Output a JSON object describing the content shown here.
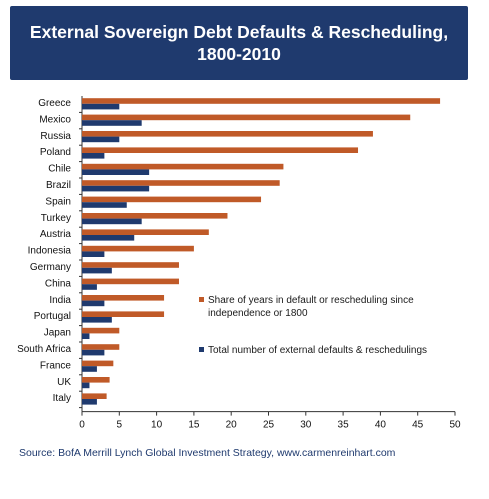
{
  "title_line1": "External Sovereign Debt Defaults & Rescheduling,",
  "title_line2": "1800-2010",
  "source": "Source: BofA Merrill Lynch Global Investment Strategy, www.carmenreinhart.com",
  "colors": {
    "banner": "#1f3a6e",
    "share_series": "#c05a28",
    "count_series": "#1f3a6e"
  },
  "chart_data": {
    "type": "bar",
    "orientation": "horizontal",
    "categories": [
      "Greece",
      "Mexico",
      "Russia",
      "Poland",
      "Chile",
      "Brazil",
      "Spain",
      "Turkey",
      "Austria",
      "Indonesia",
      "Germany",
      "China",
      "India",
      "Portugal",
      "Japan",
      "South Africa",
      "France",
      "UK",
      "Italy"
    ],
    "series": [
      {
        "name": "Share of years in default or rescheduling since independence or 1800",
        "legend_lines": [
          "Share of years in default or rescheduling since",
          "independence or 1800"
        ],
        "values": [
          48,
          44,
          39,
          37,
          27,
          26.5,
          24,
          19.5,
          17,
          15,
          13,
          13,
          11,
          11,
          5,
          5,
          4.2,
          3.7,
          3.3
        ]
      },
      {
        "name": "Total number of external defaults & reschedulings",
        "legend_lines": [
          "Total number of external defaults & reschedulings"
        ],
        "values": [
          5,
          8,
          5,
          3,
          9,
          9,
          6,
          8,
          7,
          3,
          4,
          2,
          3,
          4,
          1,
          3,
          2,
          1,
          2
        ]
      }
    ],
    "xlim": [
      0,
      50
    ],
    "xticks": [
      0,
      5,
      10,
      15,
      20,
      25,
      30,
      35,
      40,
      45,
      50
    ],
    "legend_position": "right",
    "grid": false
  }
}
